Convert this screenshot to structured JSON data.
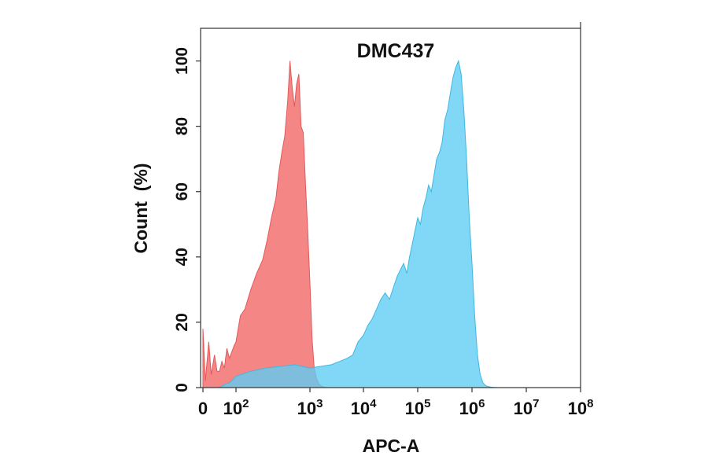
{
  "chart_data": {
    "type": "area",
    "title": "DMC437",
    "xlabel": "APC-A",
    "ylabel": "Count  (%)",
    "ylim": [
      0,
      110
    ],
    "yticks": [
      "0",
      "20",
      "40",
      "60",
      "80",
      "100"
    ],
    "xticks": [
      {
        "base": "0",
        "exp": ""
      },
      {
        "base": "10",
        "exp": "2"
      },
      {
        "base": "10",
        "exp": "3"
      },
      {
        "base": "10",
        "exp": "4"
      },
      {
        "base": "10",
        "exp": "5"
      },
      {
        "base": "10",
        "exp": "6"
      },
      {
        "base": "10",
        "exp": "7"
      },
      {
        "base": "10",
        "exp": "8"
      }
    ],
    "x_scale": "biexponential (log10 of APC-A; 0 shown at left)",
    "series": [
      {
        "color": "#f47c7c",
        "x": [
          0.0,
          0.15,
          0.35,
          0.5,
          0.7,
          0.85,
          1.0,
          1.15,
          1.3,
          1.45,
          1.6,
          1.75,
          1.9,
          2.0,
          2.06,
          2.12,
          2.2,
          2.28,
          2.36,
          2.42,
          2.48,
          2.54,
          2.58,
          2.62,
          2.66,
          2.7,
          2.73,
          2.76,
          2.79,
          2.82,
          2.85,
          2.88,
          2.91,
          2.94,
          2.97,
          3.0,
          3.04,
          3.08,
          3.12,
          3.17,
          3.22,
          3.28,
          3.32
        ],
        "values": [
          18,
          2,
          14,
          4,
          10,
          5,
          5,
          8,
          6,
          12,
          9,
          11,
          13,
          14,
          22,
          24,
          30,
          35,
          39,
          45,
          52,
          58,
          66,
          72,
          77,
          88,
          100,
          92,
          86,
          93,
          96,
          80,
          78,
          62,
          48,
          32,
          15,
          6,
          3,
          1,
          0.4,
          0.1,
          0
        ],
        "y0_start": 0
      },
      {
        "color": "#5ccdf3",
        "x": [
          1.0,
          1.2,
          1.4,
          1.6,
          1.8,
          2.0,
          2.2,
          2.4,
          2.6,
          2.8,
          3.0,
          3.2,
          3.4,
          3.55,
          3.7,
          3.8,
          3.9,
          4.0,
          4.08,
          4.16,
          4.24,
          4.32,
          4.4,
          4.48,
          4.56,
          4.62,
          4.68,
          4.74,
          4.8,
          4.85,
          4.9,
          4.95,
          5.0,
          5.05,
          5.1,
          5.15,
          5.2,
          5.25,
          5.3,
          5.35,
          5.4,
          5.45,
          5.5,
          5.55,
          5.6,
          5.65,
          5.7,
          5.75,
          5.8,
          5.85,
          5.9,
          5.95,
          6.0,
          6.05,
          6.1,
          6.15,
          6.2,
          6.25,
          6.3,
          6.35,
          6.4,
          6.5
        ],
        "values": [
          0.2,
          0.6,
          1.2,
          1.5,
          2.5,
          3.5,
          5,
          6,
          6.5,
          7,
          6,
          6.5,
          7,
          8,
          9,
          10,
          14,
          16,
          19,
          21,
          24,
          27,
          29,
          27,
          31,
          34,
          36,
          38,
          35,
          40,
          44,
          48,
          52,
          50,
          55,
          58,
          62,
          60,
          65,
          70,
          72,
          75,
          82,
          85,
          90,
          95,
          98,
          100,
          96,
          85,
          70,
          52,
          38,
          22,
          10,
          4,
          1.5,
          0.6,
          0.3,
          0.15,
          0.05,
          0
        ]
      }
    ],
    "grid": false
  }
}
